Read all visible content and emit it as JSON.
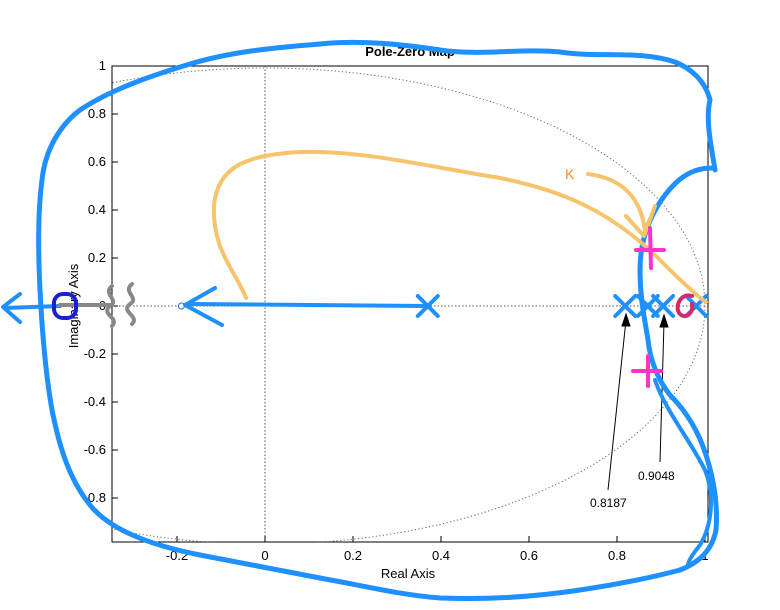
{
  "chart_data": {
    "type": "scatter",
    "title": "Pole-Zero Map",
    "xlabel": "Real Axis",
    "ylabel": "Imaginary Axis",
    "xlim": [
      -0.3,
      1.0
    ],
    "ylim": [
      -1.0,
      1.0
    ],
    "xticks": [
      "-0.2",
      "0",
      "0.2",
      "0.4",
      "0.6",
      "0.8",
      "1"
    ],
    "yticks": [
      "-0.8",
      "-0.6",
      "-0.4",
      "-0.2",
      "0",
      "0.2",
      "0.4",
      "0.6",
      "0.8",
      "1"
    ],
    "grid": "unit circle (dotted)",
    "zero": {
      "x": -0.19,
      "y": 0
    },
    "poles": [
      {
        "x": 0.37,
        "y": 0
      },
      {
        "x": 0.8187,
        "y": 0
      },
      {
        "x": 0.87,
        "y": 0
      },
      {
        "x": 0.9048,
        "y": 0
      },
      {
        "x": 0.98,
        "y": 0
      }
    ],
    "annotations": [
      {
        "text": "0.8187",
        "x": 0.8187
      },
      {
        "text": "0.9048",
        "x": 0.9048
      }
    ],
    "handwritten": {
      "gain_label": "K",
      "colors": {
        "root_locus": "#1e90ff",
        "gain_arrow": "#f5c46b",
        "break_marks": "#ff33cc",
        "crossing": "#d42a6a",
        "zero_circle": "#1a1fcf",
        "break_lines": "#888888"
      }
    }
  }
}
